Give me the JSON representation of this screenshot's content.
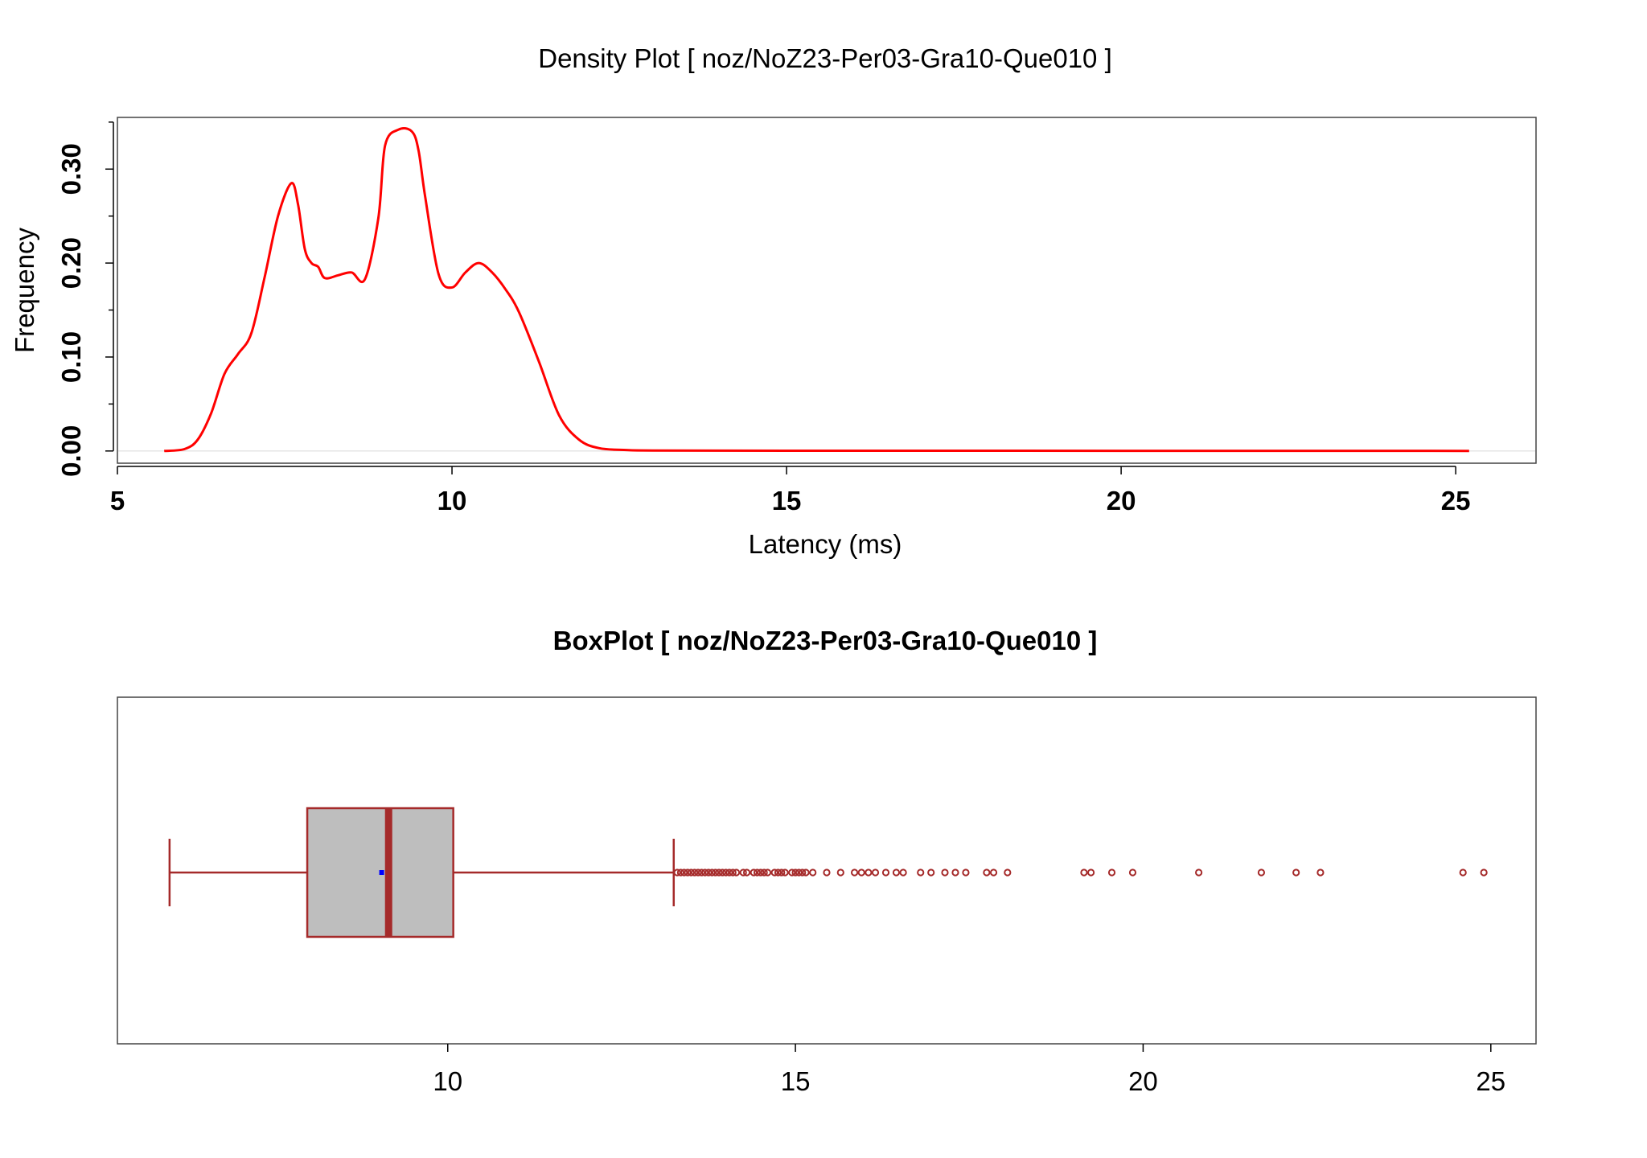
{
  "chart_data": [
    {
      "type": "line",
      "title": "Density Plot [ noz/NoZ23-Per03-Gra10-Que010 ]",
      "xlabel": "Latency (ms)",
      "ylabel": "Frequency",
      "xlim": [
        5,
        26.2
      ],
      "ylim": [
        -0.013,
        0.355
      ],
      "xticks": [
        5,
        10,
        15,
        20,
        25
      ],
      "xtick_labels": [
        "5",
        "10",
        "15",
        "20",
        "25"
      ],
      "yticks": [
        0.0,
        0.1,
        0.2,
        0.3
      ],
      "ytick_labels": [
        "0.00",
        "0.10",
        "0.20",
        "0.30"
      ],
      "yticks_minor": [
        0.05,
        0.15,
        0.25,
        0.35
      ],
      "grid": false,
      "series": [
        {
          "color": "#ff0000",
          "x": [
            5.7,
            6.0,
            6.2,
            6.4,
            6.6,
            6.8,
            7.0,
            7.2,
            7.4,
            7.6,
            7.7,
            7.8,
            7.9,
            8.0,
            8.1,
            8.3,
            8.5,
            8.7,
            8.9,
            9.0,
            9.2,
            9.4,
            9.5,
            9.6,
            9.8,
            10.0,
            10.2,
            10.4,
            10.6,
            10.8,
            11.0,
            11.3,
            11.6,
            11.9,
            12.2,
            12.6,
            13.0,
            15.0,
            20.0,
            25.2
          ],
          "y": [
            0.0,
            0.002,
            0.012,
            0.04,
            0.082,
            0.103,
            0.125,
            0.185,
            0.25,
            0.285,
            0.262,
            0.215,
            0.2,
            0.196,
            0.184,
            0.187,
            0.19,
            0.183,
            0.248,
            0.325,
            0.342,
            0.34,
            0.32,
            0.27,
            0.188,
            0.174,
            0.19,
            0.2,
            0.19,
            0.172,
            0.148,
            0.095,
            0.038,
            0.012,
            0.003,
            0.001,
            0.0005,
            0.0003,
            0.0002,
            0.0001
          ]
        }
      ]
    },
    {
      "type": "box",
      "title": "BoxPlot [ noz/NoZ23-Per03-Gra10-Que010 ]",
      "xlim": [
        5.25,
        25.65
      ],
      "xticks": [
        10,
        15,
        20,
        25
      ],
      "xtick_labels": [
        "10",
        "15",
        "20",
        "25"
      ],
      "whisker_low": 6.0,
      "q1": 7.98,
      "median": 9.15,
      "q3": 10.08,
      "whisker_high": 13.25,
      "mean": 9.05,
      "box_color": "#bebebe",
      "line_color": "#a52a2a",
      "mean_color": "#0000ff",
      "outliers": [
        13.3,
        13.35,
        13.4,
        13.45,
        13.5,
        13.55,
        13.6,
        13.65,
        13.7,
        13.75,
        13.8,
        13.85,
        13.9,
        13.95,
        14.0,
        14.05,
        14.1,
        14.15,
        14.25,
        14.3,
        14.4,
        14.45,
        14.5,
        14.55,
        14.6,
        14.7,
        14.75,
        14.8,
        14.85,
        14.95,
        15.0,
        15.05,
        15.1,
        15.15,
        15.25,
        15.45,
        15.65,
        15.85,
        15.95,
        16.05,
        16.15,
        16.3,
        16.45,
        16.55,
        16.8,
        16.95,
        17.15,
        17.3,
        17.45,
        17.75,
        17.85,
        18.05,
        19.15,
        19.25,
        19.55,
        19.85,
        20.8,
        21.7,
        22.2,
        22.55,
        24.6,
        24.9
      ]
    }
  ]
}
